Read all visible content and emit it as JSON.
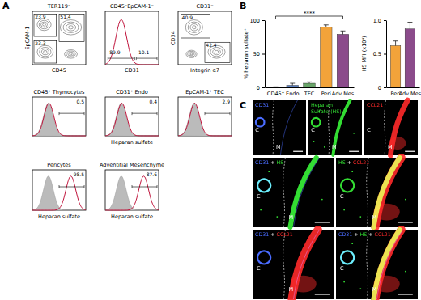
{
  "panel_labels": [
    "A",
    "B",
    "C"
  ],
  "flow_cytometry": {
    "row1": [
      {
        "title": "TER119⁻",
        "type": "contour",
        "x_label": "CD45",
        "y_label": "EpCAM-1",
        "gates": [
          23.9,
          51.4,
          23.3
        ]
      },
      {
        "title": "CD45⁻EpCAM-1⁻",
        "type": "histogram",
        "x_label": "CD31",
        "gates": [
          89.9,
          10.1
        ]
      },
      {
        "title": "CD31⁻",
        "type": "contour",
        "x_label": "Integrin α7",
        "y_label": "CD34",
        "gates": [
          40.9,
          42.4
        ]
      }
    ],
    "row2": [
      {
        "title": "CD45⁺ Thymocytes",
        "gate": 0.5
      },
      {
        "title": "CD31⁺ Endo",
        "gate": 0.4
      },
      {
        "title": "EpCAM-1⁺ TEC",
        "gate": 2.9
      }
    ],
    "row2_x_label": "Heparan sulfate",
    "row3": [
      {
        "title": "Pericytes",
        "gate": 98.5,
        "x_label": "Heparan sulfate"
      },
      {
        "title": "Adventitial Mesenchyme",
        "gate": 87.6,
        "x_label": "Heparan sulfate"
      }
    ]
  },
  "chart_data": [
    {
      "type": "bar",
      "ylabel": "% heparan sulfate⁺",
      "categories": [
        "CD45⁺",
        "Endo",
        "TEC",
        "Peri",
        "Adv Mes"
      ],
      "values": [
        0.5,
        3,
        6,
        90,
        79
      ],
      "errors": [
        0.3,
        3,
        2,
        3,
        5
      ],
      "colors": [
        "#333333",
        "#5b7fbf",
        "#6aa56a",
        "#f2a33a",
        "#8b4b8b"
      ],
      "ylim": [
        0,
        100
      ],
      "yticks": [
        0,
        50,
        100
      ],
      "annotation": "****"
    },
    {
      "type": "bar",
      "ylabel": "HS MFI (x10⁴)",
      "categories": [
        "Peri",
        "Adv Mes"
      ],
      "values": [
        0.62,
        0.87
      ],
      "errors": [
        0.07,
        0.1
      ],
      "colors": [
        "#f2a33a",
        "#8b4b8b"
      ],
      "ylim": [
        0,
        1
      ],
      "yticks": [
        0,
        0.5,
        {
          "value": 1,
          "label": "1.0"
        }
      ]
    }
  ],
  "micrographs": {
    "region_labels": [
      "C",
      "M"
    ],
    "panels": [
      {
        "title": [
          [
            {
              "text": "CD31",
              "color": "#4a6cff"
            }
          ]
        ]
      },
      {
        "title": [
          [
            {
              "text": "Heparan",
              "color": "#33dd33"
            }
          ],
          [
            {
              "text": "Sulfate (HS)",
              "color": "#33dd33"
            }
          ]
        ]
      },
      {
        "title": [
          [
            {
              "text": "CCL21",
              "color": "#ff2a2a"
            }
          ]
        ]
      },
      {
        "title": [
          [
            {
              "text": "CD31",
              "color": "#4a6cff"
            },
            {
              "text": " + ",
              "color": "#ffffff"
            },
            {
              "text": "HS",
              "color": "#33dd33"
            }
          ]
        ]
      },
      {
        "title": [
          [
            {
              "text": "HS",
              "color": "#33dd33"
            },
            {
              "text": " + ",
              "color": "#ffffff"
            },
            {
              "text": "CCL21",
              "color": "#ff2a2a"
            }
          ]
        ]
      },
      {
        "title": [
          [
            {
              "text": "CD31",
              "color": "#4a6cff"
            },
            {
              "text": " + ",
              "color": "#ffffff"
            },
            {
              "text": "CCL21",
              "color": "#ff2a2a"
            }
          ]
        ]
      },
      {
        "title": [
          [
            {
              "text": "CD31",
              "color": "#4a6cff"
            },
            {
              "text": " + ",
              "color": "#ffffff"
            },
            {
              "text": "HS",
              "color": "#33dd33"
            },
            {
              "text": " + ",
              "color": "#ffffff"
            },
            {
              "text": "CCL21",
              "color": "#ff2a2a"
            }
          ]
        ]
      }
    ]
  }
}
